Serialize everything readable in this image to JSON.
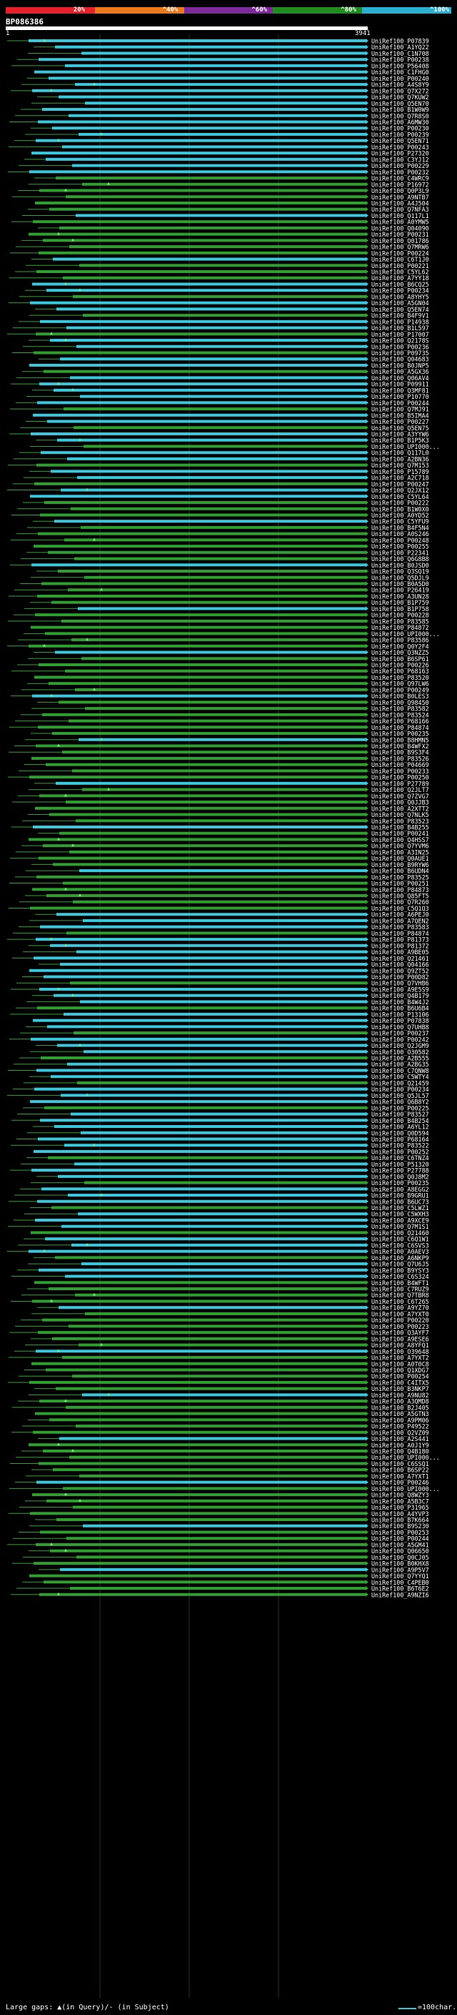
{
  "legend": {
    "colors": [
      "#e8202a",
      "#ec7a1a",
      "#7e2a9a",
      "#1f8e1f",
      "#2ab0d0"
    ],
    "labels": [
      "20%",
      "^40%",
      "^60%",
      "^80%",
      "^100%"
    ]
  },
  "query": {
    "name": "BP086386",
    "start": "1",
    "end": "3941"
  },
  "footer": {
    "large_gaps": "Large gaps: ▲(in Query)/- (in Subject)",
    "scale": "=100char."
  },
  "chart_data": {
    "type": "alignment",
    "query_length": 3941,
    "hits": [
      "UniRef100_P07839",
      "UniRef100_A1YQ22",
      "UniRef100_C1N708",
      "UniRef100_P00238",
      "UniRef100_P56408",
      "UniRef100_C1FHG0",
      "UniRef100_P00240",
      "UniRef100_A4S8Y9",
      "UniRef100_Q7X272",
      "UniRef100_Q7KUW2",
      "UniRef100_Q5EN70",
      "UniRef100_B1W0W9",
      "UniRef100_Q7R8S0",
      "UniRef100_A6MW30",
      "UniRef100_P00230",
      "UniRef100_P00239",
      "UniRef100_Q5EN71",
      "UniRef100_P00243",
      "UniRef100_P27320",
      "UniRef100_C3YJ12",
      "UniRef100_P00229",
      "UniRef100_P00232",
      "UniRef100_C4WRC9",
      "UniRef100_P16972",
      "UniRef100_Q0P3L9",
      "UniRef100_A9NTB7",
      "UniRef100_A4J504",
      "UniRef100_Q7NFA3",
      "UniRef100_Q117L1",
      "UniRef100_A0YMW5",
      "UniRef100_Q04090",
      "UniRef100_P00231",
      "UniRef100_Q01786",
      "UniRef100_Q7MRW6",
      "UniRef100_P00224",
      "UniRef100_C6T1J0",
      "UniRef100_P00221",
      "UniRef100_C5YL62",
      "UniRef100_A7YY18",
      "UniRef100_B6CQ25",
      "UniRef100_P00234",
      "UniRef100_A8YHY5",
      "UniRef100_A5GN04",
      "UniRef100_Q5EN74",
      "UniRef100_B4F9V1",
      "UniRef100_P14938",
      "UniRef100_B1L597",
      "UniRef100_P17007",
      "UniRef100_Q2178S",
      "UniRef100_P00236",
      "UniRef100_P09735",
      "UniRef100_Q04683",
      "UniRef100_B0JNP5",
      "UniRef100_A5GX36",
      "UniRef100_Q06AV4",
      "UniRef100_P09911",
      "UniRef100_Q3MF81",
      "UniRef100_P10770",
      "UniRef100_P00244",
      "UniRef100_Q7MJ91",
      "UniRef100_B5IMA4",
      "UniRef100_P00227",
      "UniRef100_Q5EN75",
      "UniRef100_A3YYW6",
      "UniRef100_B1P5K3",
      "UniRef100_UPI000...",
      "UniRef100_Q117L0",
      "UniRef100_A2BN36",
      "UniRef100_Q7M153",
      "UniRef100_P15789",
      "UniRef100_A2C718",
      "UniRef100_P00247",
      "UniRef100_Q2JX12",
      "UniRef100_C5YL64",
      "UniRef100_P00222",
      "UniRef100_B1W0X0",
      "UniRef100_A0YD52",
      "UniRef100_C5YFU9",
      "UniRef100_B4F5N4",
      "UniRef100_A0S246",
      "UniRef100_P00248",
      "UniRef100_P00255",
      "UniRef100_P22341",
      "UniRef100_Q6G8B8",
      "UniRef100_B0JSD0",
      "UniRef100_Q3SQ19",
      "UniRef100_Q5DJL9",
      "UniRef100_B0A5D0",
      "UniRef100_P26419",
      "UniRef100_A3UN28",
      "UniRef100_B1P759",
      "UniRef100_B1P758",
      "UniRef100_P00228",
      "UniRef100_P83585",
      "UniRef100_P84872",
      "UniRef100_UPI000...",
      "UniRef100_P83586",
      "UniRef100_Q0Y2F4",
      "UniRef100_Q3NZZ5",
      "UniRef100_B6SP61",
      "UniRef100_P00226",
      "UniRef100_P68163",
      "UniRef100_P83520",
      "UniRef100_Q97LW6",
      "UniRef100_P00249",
      "UniRef100_B0LES3",
      "UniRef100_Q98450",
      "UniRef100_P83582",
      "UniRef100_P83524",
      "UniRef100_P68166",
      "UniRef100_P84874",
      "UniRef100_P00235",
      "UniRef100_B8HMN5",
      "UniRef100_B4WFX2",
      "UniRef100_B9S3F4",
      "UniRef100_P83526",
      "UniRef100_P04669",
      "UniRef100_P00233",
      "UniRef100_P00250",
      "UniRef100_P27789",
      "UniRef100_Q2JLT7",
      "UniRef100_Q7ZVG7",
      "UniRef100_Q0JJB3",
      "UniRef100_A2XTT2",
      "UniRef100_Q7NLK5",
      "UniRef100_P83523",
      "UniRef100_B4B255",
      "UniRef100_P00241",
      "UniRef100_Q4HSS7",
      "UniRef100_Q7YVM6",
      "UniRef100_A3IN25",
      "UniRef100_Q0AUE1",
      "UniRef100_B9RYW6",
      "UniRef100_B6UDN4",
      "UniRef100_P83525",
      "UniRef100_P00251",
      "UniRef100_P84873",
      "UniRef100_Q85FT5",
      "UniRef100_Q7R260",
      "UniRef100_C5Q1Q3",
      "UniRef100_A6PEJ0",
      "UniRef100_A7QEN2",
      "UniRef100_P83583",
      "UniRef100_P84874",
      "UniRef100_P81373",
      "UniRef100_P81372",
      "UniRef100_A9BE05",
      "UniRef100_Q21461",
      "UniRef100_Q04166",
      "UniRef100_Q9ZT52",
      "UniRef100_P00D82",
      "UniRef100_Q7VHB6",
      "UniRef100_A9E5S9",
      "UniRef100_Q4B179",
      "UniRef100_B4W4J2",
      "UniRef100_B6U6B4",
      "UniRef100_P13106",
      "UniRef100_P07838",
      "UniRef100_Q7UHB8",
      "UniRef100_P00237",
      "UniRef100_P00242",
      "UniRef100_Q2JGM9",
      "UniRef100_O30582",
      "UniRef100_A2B555",
      "UniRef100_A2BG35",
      "UniRef100_C7QNW8",
      "UniRef100_C5WTY4",
      "UniRef100_Q21459",
      "UniRef100_P00234",
      "UniRef100_Q5JL57",
      "UniRef100_Q6B8Y2",
      "UniRef100_P00225",
      "UniRef100_P83527",
      "UniRef100_B4B254",
      "UniRef100_A6YL12",
      "UniRef100_Q0D594",
      "UniRef100_P68164",
      "UniRef100_P83522",
      "UniRef100_P00252",
      "UniRef100_C6TNZ4",
      "UniRef100_P51320",
      "UniRef100_P27788",
      "UniRef100_Q0J8M2",
      "UniRef100_P00235",
      "UniRef100_A8EGG2",
      "UniRef100_B9GRU1",
      "UniRef100_B6UC73",
      "UniRef100_C5LWZ1",
      "UniRef100_C5WXH3",
      "UniRef100_A9XCE9",
      "UniRef100_Q7M1S1",
      "UniRef100_Q21460",
      "UniRef100_C6Q1W1",
      "UniRef100_C6SVS3",
      "UniRef100_A0AEV3",
      "UniRef100_A6NKP9",
      "UniRef100_Q7U6J5",
      "UniRef100_B9YSY3",
      "UniRef100_C6S324",
      "UniRef100_B4WFT1",
      "UniRef100_C7RUZ9",
      "UniRef100_Q7TBR8",
      "UniRef100_C6T265",
      "UniRef100_A9YZ70",
      "UniRef100_A7YXT0",
      "UniRef100_P00220",
      "UniRef100_P00223",
      "UniRef100_Q3AYF7",
      "UniRef100_A9ESE6",
      "UniRef100_A8YFQ1",
      "UniRef100_O39648",
      "UniRef100_A7YXT2",
      "UniRef100_A0T0C8",
      "UniRef100_Q1XDG7",
      "UniRef100_P00254",
      "UniRef100_C4ITX5",
      "UniRef100_B3NKP7",
      "UniRef100_A9NU82",
      "UniRef100_A3QMD8",
      "UniRef100_B2J405",
      "UniRef100_A5GTN3",
      "UniRef100_A9PM06",
      "UniRef100_P49522",
      "UniRef100_Q2VZ09",
      "UniRef100_A2S441",
      "UniRef100_A0J1Y9",
      "UniRef100_Q4B180",
      "UniRef100_UPI000...",
      "UniRef100_C6SSQ1",
      "UniRef100_B6SP22",
      "UniRef100_A7YXT1",
      "UniRef100_P00246",
      "UniRef100_UPI000...",
      "UniRef100_Q8WZY3",
      "UniRef100_A5B3C7",
      "UniRef100_P31965",
      "UniRef100_A4YVP3",
      "UniRef100_B7K664",
      "UniRef100_B9S230",
      "UniRef100_P00253",
      "UniRef100_P00244",
      "UniRef100_A5GM41",
      "UniRef100_Q06650",
      "UniRef100_Q0CJ05",
      "UniRef100_B0KHX8",
      "UniRef100_A9P5V7",
      "UniRef100_Q7YYQ1",
      "UniRef100_C4PEB0",
      "UniRef100_B6T6E2",
      "UniRef100_A9NZI6"
    ]
  }
}
